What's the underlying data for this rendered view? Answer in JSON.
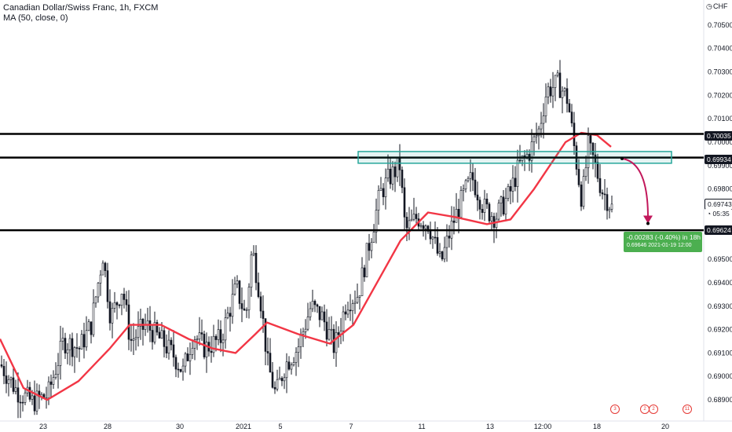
{
  "header": {
    "title": "Canadian Dollar/Swiss Franc, 1h, FXCM",
    "indicator": "MA (50, close, 0)"
  },
  "axis": {
    "currency": "CHF",
    "y_ticks": [
      "0.70500",
      "0.70400",
      "0.70300",
      "0.70200",
      "0.70100",
      "0.70000",
      "0.69900",
      "0.69800",
      "0.69500",
      "0.69400",
      "0.69300",
      "0.69200",
      "0.69100",
      "0.69000",
      "0.68900"
    ],
    "x_ticks": [
      "23",
      "28",
      "30",
      "2021",
      "5",
      "7",
      "11",
      "13",
      "12:00",
      "18",
      "20"
    ]
  },
  "price_labels": {
    "level_1": "0.70035",
    "level_2": "0.69934",
    "current": "0.69743",
    "countdown": "05:35",
    "level_3": "0.69624"
  },
  "measure": {
    "line1": "-0.00283 (-0.40%) in 18h",
    "line2_price": "0.69646",
    "line2_date": "2021-01-19  12:00"
  },
  "events": [
    "3",
    "2",
    "2",
    "11"
  ],
  "colors": {
    "up": "#131722",
    "down": "#131722",
    "ma": "#f23645",
    "zone": "#26a69a",
    "arrow": "#c2185b",
    "measure": "#4caf50",
    "current_price": "#131722"
  },
  "chart_data": {
    "type": "candlestick",
    "symbol": "CADCHF",
    "timeframe": "1h",
    "ylim": [
      0.6887,
      0.7058
    ],
    "indicator": "MA (50, close, 0)",
    "horizontal_levels": [
      0.70035,
      0.69934,
      0.69624
    ],
    "zone": {
      "low": 0.6991,
      "high": 0.6996
    },
    "projection": {
      "from": 0.6993,
      "to": 0.69646,
      "change": "-0.00283 (-0.40%)",
      "bars": 18
    },
    "close_path": [
      [
        0,
        0.6905
      ],
      [
        20,
        0.6894
      ],
      [
        40,
        0.6889
      ],
      [
        60,
        0.6892
      ],
      [
        80,
        0.6915
      ],
      [
        100,
        0.6912
      ],
      [
        115,
        0.6922
      ],
      [
        130,
        0.6952
      ],
      [
        140,
        0.6925
      ],
      [
        155,
        0.6938
      ],
      [
        165,
        0.6915
      ],
      [
        185,
        0.6922
      ],
      [
        205,
        0.6915
      ],
      [
        220,
        0.6909
      ],
      [
        232,
        0.6902
      ],
      [
        245,
        0.6918
      ],
      [
        260,
        0.6912
      ],
      [
        280,
        0.6916
      ],
      [
        300,
        0.6938
      ],
      [
        312,
        0.6925
      ],
      [
        320,
        0.6955
      ],
      [
        330,
        0.6935
      ],
      [
        340,
        0.6905
      ],
      [
        350,
        0.6892
      ],
      [
        362,
        0.6905
      ],
      [
        378,
        0.6912
      ],
      [
        395,
        0.693
      ],
      [
        410,
        0.6925
      ],
      [
        425,
        0.6912
      ],
      [
        440,
        0.6932
      ],
      [
        455,
        0.6935
      ],
      [
        470,
        0.6958
      ],
      [
        483,
        0.6978
      ],
      [
        495,
        0.6985
      ],
      [
        508,
        0.699
      ],
      [
        515,
        0.6962
      ],
      [
        530,
        0.6968
      ],
      [
        545,
        0.6965
      ],
      [
        560,
        0.6948
      ],
      [
        575,
        0.6965
      ],
      [
        590,
        0.6978
      ],
      [
        600,
        0.6985
      ],
      [
        615,
        0.6972
      ],
      [
        630,
        0.6968
      ],
      [
        648,
        0.6978
      ],
      [
        660,
        0.699
      ],
      [
        672,
        0.6995
      ],
      [
        685,
        0.7005
      ],
      [
        695,
        0.7022
      ],
      [
        710,
        0.7025
      ],
      [
        722,
        0.7018
      ],
      [
        730,
        0.6998
      ],
      [
        740,
        0.6975
      ],
      [
        748,
        0.6998
      ],
      [
        755,
        0.6992
      ],
      [
        765,
        0.698
      ],
      [
        778,
        0.6972
      ]
    ],
    "ma_path": [
      [
        0,
        0.6916
      ],
      [
        30,
        0.6895
      ],
      [
        60,
        0.689
      ],
      [
        100,
        0.6898
      ],
      [
        140,
        0.6912
      ],
      [
        165,
        0.6922
      ],
      [
        205,
        0.6922
      ],
      [
        240,
        0.6916
      ],
      [
        270,
        0.6912
      ],
      [
        300,
        0.691
      ],
      [
        325,
        0.6918
      ],
      [
        340,
        0.6923
      ],
      [
        380,
        0.6918
      ],
      [
        420,
        0.6914
      ],
      [
        450,
        0.6922
      ],
      [
        480,
        0.694
      ],
      [
        510,
        0.6958
      ],
      [
        545,
        0.697
      ],
      [
        580,
        0.6968
      ],
      [
        620,
        0.6965
      ],
      [
        650,
        0.6967
      ],
      [
        680,
        0.698
      ],
      [
        700,
        0.699
      ],
      [
        720,
        0.7
      ],
      [
        740,
        0.7004
      ],
      [
        760,
        0.7003
      ],
      [
        778,
        0.6998
      ]
    ]
  }
}
